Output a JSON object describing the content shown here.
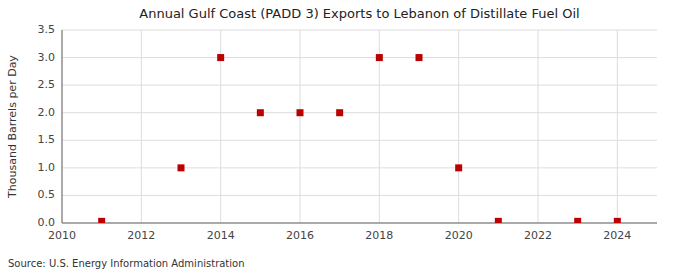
{
  "chart_data": {
    "type": "scatter",
    "title": "Annual Gulf Coast (PADD 3) Exports to Lebanon of Distillate Fuel Oil",
    "ylabel": "Thousand Barrels per Day",
    "source": "Source: U.S. Energy Information Administration",
    "x": [
      2011,
      2013,
      2014,
      2015,
      2016,
      2017,
      2018,
      2019,
      2020,
      2021,
      2023,
      2024
    ],
    "values": [
      0.03,
      1.0,
      3.0,
      2.0,
      2.0,
      2.0,
      3.0,
      3.0,
      1.0,
      0.03,
      0.03,
      0.03
    ],
    "color": "#bb0000",
    "marker": "square",
    "xlim": [
      2010,
      2025
    ],
    "ylim": [
      0,
      3.5
    ],
    "xticks": [
      2010,
      2012,
      2014,
      2016,
      2018,
      2020,
      2022,
      2024
    ],
    "yticks": [
      {
        "value": 0.0,
        "label": "0.0"
      },
      0.5,
      {
        "value": 1.0,
        "label": "1.0"
      },
      1.5,
      {
        "value": 2.0,
        "label": "2.0"
      },
      2.5,
      {
        "value": 3.0,
        "label": "3.0"
      },
      3.5
    ],
    "grid": true
  }
}
